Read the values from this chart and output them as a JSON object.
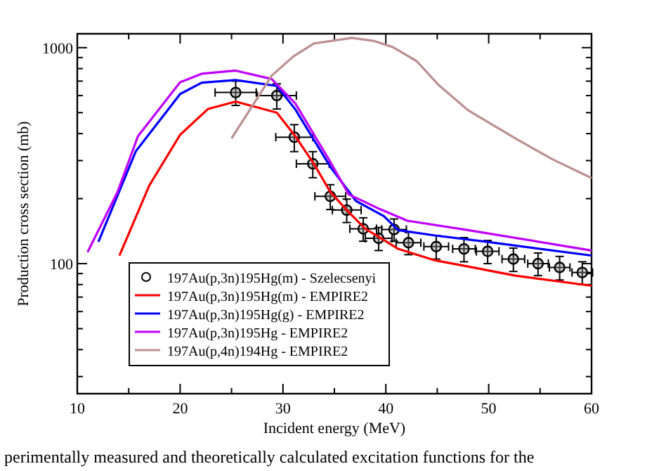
{
  "chart_data": {
    "type": "line",
    "xlabel": "Incident energy (MeV)",
    "ylabel": "Production cross section (mb)",
    "log": "y",
    "xlim": [
      10,
      60
    ],
    "ylim": [
      25,
      1160
    ],
    "xticks": [
      10,
      {
        "value": 15,
        "label": null
      },
      20,
      {
        "value": 25,
        "label": null
      },
      30,
      {
        "value": 35,
        "label": null
      },
      40,
      {
        "value": 45,
        "label": null
      },
      50,
      {
        "value": 55,
        "label": null
      },
      60
    ],
    "yticks": [
      {
        "value": 30,
        "label": null
      },
      {
        "value": 40,
        "label": null
      },
      {
        "value": 50,
        "label": null
      },
      {
        "value": 60,
        "label": null
      },
      {
        "value": 70,
        "label": null
      },
      {
        "value": 80,
        "label": null
      },
      {
        "value": 90,
        "label": null
      },
      100,
      {
        "value": 200,
        "label": null
      },
      {
        "value": 300,
        "label": null
      },
      {
        "value": 400,
        "label": null
      },
      {
        "value": 500,
        "label": null
      },
      {
        "value": 600,
        "label": null
      },
      {
        "value": 700,
        "label": null
      },
      {
        "value": 800,
        "label": null
      },
      {
        "value": 900,
        "label": null
      },
      1000
    ],
    "grid": false,
    "legend": "bottom left",
    "line_style": "solid",
    "series": [
      {
        "name": "197Au(p,3n)195Hg(m) - Szelecsenyi",
        "type": "scatter",
        "marker": "circle",
        "color": "#000000",
        "x": [
          25.4,
          29.4,
          31.1,
          32.9,
          34.6,
          36.2,
          37.8,
          39.3,
          40.8,
          42.2,
          44.9,
          47.6,
          49.9,
          52.4,
          54.8,
          56.9,
          59.1
        ],
        "values": [
          620,
          600,
          385,
          290,
          205,
          177,
          145,
          131,
          144,
          125,
          120,
          117,
          114,
          105,
          100,
          96,
          91
        ],
        "errors": [
          80,
          80,
          55,
          40,
          27,
          22,
          18,
          16,
          17,
          15,
          15,
          15,
          14,
          13,
          12,
          12,
          11
        ],
        "xerrors": [
          2,
          1.9,
          1.8,
          1.6,
          1.5,
          1.4,
          1.3,
          1.3,
          1.2,
          1.2,
          1.2,
          1.1,
          1.1,
          1.1,
          1,
          1,
          1
        ]
      },
      {
        "name": "197Au(p,3n)195Hg(m) - EMPIRE2",
        "color": "#ff0000",
        "x": [
          14.1,
          17,
          20,
          22.7,
          25.4,
          29.4,
          31.2,
          33,
          34.6,
          36.2,
          38,
          40,
          41.2,
          44.8,
          48,
          52.6,
          60
        ],
        "values": [
          109,
          230,
          395,
          520,
          563,
          500,
          389,
          290,
          215,
          177,
          145,
          127,
          117,
          103.5,
          97,
          88,
          79
        ]
      },
      {
        "name": "197Au(p,3n)195Hg(g) - EMPIRE2",
        "color": "#0000ff",
        "x": [
          12.05,
          15.7,
          20,
          22.1,
          25.4,
          29.4,
          31.2,
          34.6,
          37.1,
          39.8,
          41.2,
          44.8,
          49.9,
          60
        ],
        "values": [
          126,
          332,
          610,
          688,
          708,
          665,
          518,
          281,
          195,
          166,
          143,
          135,
          126,
          109
        ]
      },
      {
        "name": "197Au(p,3n)195Hg - EMPIRE2",
        "color": "#c000ff",
        "x": [
          11,
          13.9,
          15.9,
          20,
          22.1,
          25.4,
          28.9,
          31.2,
          34.6,
          36.4,
          39.4,
          42.1,
          48,
          60
        ],
        "values": [
          113,
          214,
          389,
          692,
          757,
          783,
          716,
          552,
          296,
          209,
          179,
          158,
          143,
          115
        ]
      },
      {
        "name": "197Au(p,4n)194Hg - EMPIRE2",
        "color": "#bc8f8f",
        "x": [
          25,
          28.9,
          31,
          33,
          36.7,
          38.9,
          40.7,
          43,
          45.1,
          48,
          52.6,
          56.2,
          60
        ],
        "values": [
          380,
          742,
          910,
          1046,
          1110,
          1073,
          1005,
          866,
          674,
          513,
          380,
          304,
          249
        ]
      }
    ],
    "annotations": [
      "perimentally measured and theoretically calculated excitation functions for the"
    ]
  }
}
